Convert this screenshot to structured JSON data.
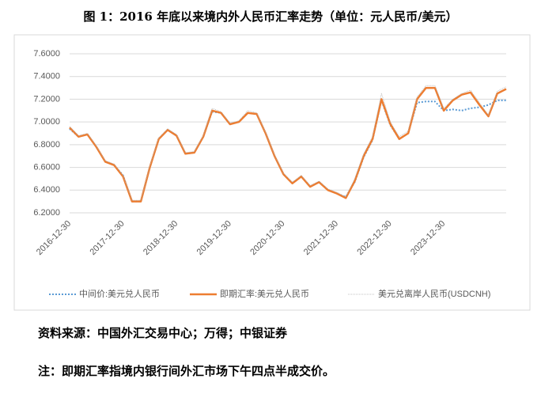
{
  "chart_data": {
    "type": "line",
    "title": "图 1：2016 年底以来境内外人民币汇率走势（单位：元人民币/美元）",
    "categories": [
      "2016-12-30",
      null,
      null,
      null,
      null,
      null,
      "2017-12-30",
      null,
      null,
      null,
      null,
      null,
      "2018-12-30",
      null,
      null,
      null,
      null,
      null,
      "2019-12-30",
      null,
      null,
      null,
      null,
      null,
      "2020-12-30",
      null,
      null,
      null,
      null,
      null,
      "2021-12-30",
      null,
      null,
      null,
      null,
      null,
      "2022-12-30",
      null,
      null,
      null,
      null,
      null,
      "2023-12-30",
      null,
      null,
      null,
      null,
      null,
      null,
      null
    ],
    "series": [
      {
        "name": "中间价:美元兑人民币",
        "color": "#5b9bd5",
        "style": "dotted",
        "values": [
          6.94,
          6.87,
          6.89,
          6.78,
          6.65,
          6.62,
          6.53,
          6.3,
          6.3,
          6.6,
          6.85,
          6.93,
          6.88,
          6.72,
          6.73,
          6.87,
          7.09,
          7.08,
          6.98,
          7.0,
          7.08,
          7.07,
          6.9,
          6.7,
          6.54,
          6.46,
          6.52,
          6.43,
          6.47,
          6.4,
          6.37,
          6.34,
          6.47,
          6.69,
          6.84,
          7.19,
          6.97,
          6.85,
          6.9,
          7.17,
          7.18,
          7.18,
          7.1,
          7.11,
          7.1,
          7.12,
          7.13,
          7.15,
          7.19,
          7.19
        ]
      },
      {
        "name": "即期汇率:美元兑人民币",
        "color": "#ed7d31",
        "style": "solid",
        "values": [
          6.95,
          6.87,
          6.89,
          6.78,
          6.65,
          6.62,
          6.52,
          6.3,
          6.3,
          6.6,
          6.85,
          6.93,
          6.88,
          6.72,
          6.73,
          6.87,
          7.1,
          7.08,
          6.98,
          7.0,
          7.08,
          7.07,
          6.9,
          6.7,
          6.54,
          6.46,
          6.52,
          6.43,
          6.47,
          6.4,
          6.37,
          6.33,
          6.48,
          6.7,
          6.85,
          7.2,
          6.98,
          6.85,
          6.9,
          7.2,
          7.3,
          7.3,
          7.1,
          7.19,
          7.24,
          7.26,
          7.15,
          7.05,
          7.25,
          7.29
        ]
      },
      {
        "name": "美元兑离岸人民币(USDCNH)",
        "color": "#b0b0b0",
        "style": "thin",
        "values": [
          6.96,
          6.88,
          6.9,
          6.79,
          6.66,
          6.63,
          6.53,
          6.31,
          6.31,
          6.61,
          6.86,
          6.94,
          6.89,
          6.73,
          6.74,
          6.88,
          7.12,
          7.09,
          6.99,
          7.01,
          7.1,
          7.08,
          6.91,
          6.71,
          6.55,
          6.47,
          6.53,
          6.44,
          6.48,
          6.41,
          6.38,
          6.34,
          6.5,
          6.72,
          6.87,
          7.25,
          7.0,
          6.87,
          6.92,
          7.22,
          7.32,
          7.32,
          7.12,
          7.2,
          7.25,
          7.28,
          7.17,
          7.06,
          7.27,
          7.31
        ]
      }
    ],
    "ylim": [
      6.2,
      7.6
    ],
    "yticks": [
      {
        "value": 6.2,
        "label": "6.2000"
      },
      {
        "value": 6.4,
        "label": "6.4000"
      },
      {
        "value": 6.6,
        "label": "6.6000"
      },
      {
        "value": 6.8,
        "label": "6.8000"
      },
      {
        "value": 7.0,
        "label": "7.0000"
      },
      {
        "value": 7.2,
        "label": "7.2000"
      },
      {
        "value": 7.4,
        "label": "7.4000"
      },
      {
        "value": 7.6,
        "label": "7.6000"
      }
    ],
    "grid": true,
    "legend": "bottom"
  },
  "notes": [
    "资料来源：中国外汇交易中心；万得；中银证券",
    "注：即期汇率指境内银行间外汇市场下午四点半成交价。"
  ]
}
